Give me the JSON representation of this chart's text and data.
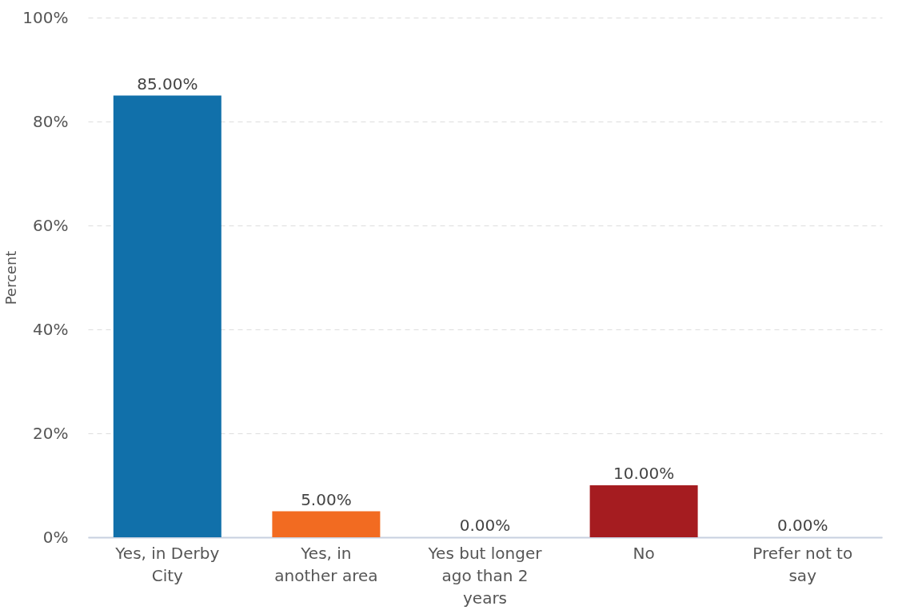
{
  "chart_data": {
    "type": "bar",
    "ylabel": "Percent",
    "categories": [
      "Yes, in Derby City",
      "Yes, in another area",
      "Yes but longer ago than 2 years",
      "No",
      "Prefer not to say"
    ],
    "values": [
      85,
      5,
      0,
      10,
      0
    ],
    "value_labels": [
      "85.00%",
      "5.00%",
      "0.00%",
      "10.00%",
      "0.00%"
    ],
    "colors": [
      "#1170aa",
      "#f26b21",
      "#7f7f7f",
      "#a51c20",
      "#5fa2ce"
    ],
    "ylim": [
      0,
      100
    ],
    "yticks": [
      {
        "value": 0,
        "label": "0%"
      },
      {
        "value": 20,
        "label": "20%"
      },
      {
        "value": 40,
        "label": "40%"
      },
      {
        "value": 60,
        "label": "60%"
      },
      {
        "value": 80,
        "label": "80%"
      },
      {
        "value": 100,
        "label": "100%"
      }
    ],
    "grid": "y"
  }
}
